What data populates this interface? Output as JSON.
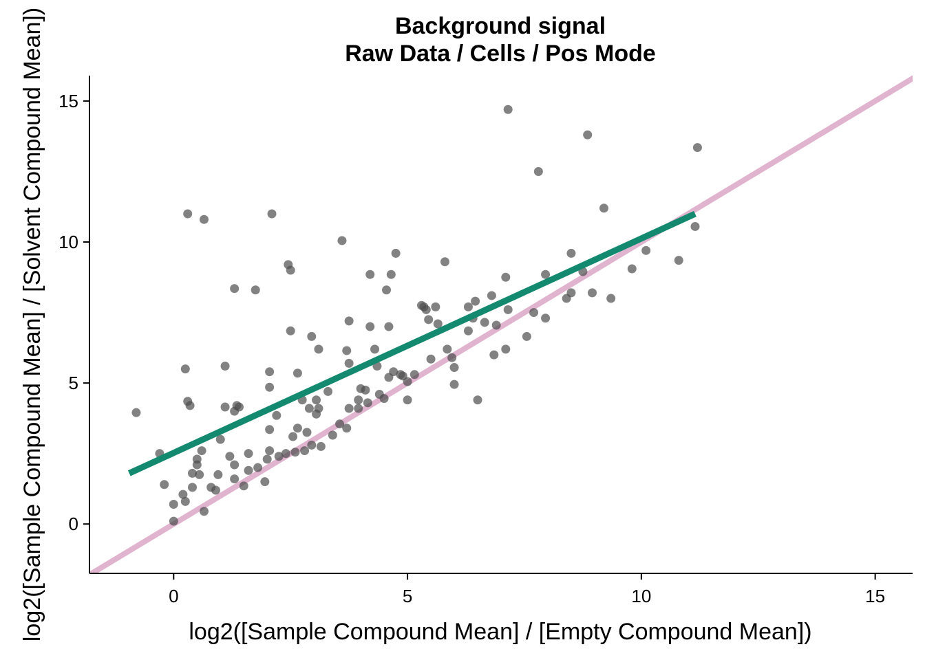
{
  "chart_data": {
    "type": "scatter",
    "title": "Background signal",
    "subtitle": "Raw Data / Cells / Pos Mode",
    "xlabel": "log2([Sample Compound Mean] / [Empty Compound Mean])",
    "ylabel": "log2([Sample Compound Mean] / [Solvent Compound Mean])",
    "xlim": [
      -1.8,
      15.8
    ],
    "ylim": [
      -1.75,
      15.9
    ],
    "x_ticks": [
      0,
      5,
      10,
      15
    ],
    "y_ticks": [
      0,
      5,
      10,
      15
    ],
    "grid": false,
    "point_color": "#4d4d4d",
    "identity_line": {
      "slope": 1,
      "intercept": 0,
      "color": "#e0b3cf"
    },
    "trend_line": {
      "x": [
        -0.95,
        11.15
      ],
      "y": [
        1.8,
        11.0
      ],
      "color": "#138a70"
    },
    "points": [
      [
        -0.8,
        3.95
      ],
      [
        -0.3,
        2.5
      ],
      [
        -0.2,
        1.4
      ],
      [
        0.0,
        0.1
      ],
      [
        0.0,
        0.7
      ],
      [
        0.2,
        1.05
      ],
      [
        0.25,
        0.8
      ],
      [
        0.25,
        5.5
      ],
      [
        0.3,
        4.35
      ],
      [
        0.35,
        4.2
      ],
      [
        0.3,
        11.0
      ],
      [
        0.4,
        1.8
      ],
      [
        0.4,
        1.3
      ],
      [
        0.5,
        2.3
      ],
      [
        0.5,
        2.1
      ],
      [
        0.55,
        1.75
      ],
      [
        0.6,
        2.6
      ],
      [
        0.65,
        0.45
      ],
      [
        0.65,
        10.8
      ],
      [
        0.8,
        1.3
      ],
      [
        0.9,
        1.2
      ],
      [
        0.95,
        1.75
      ],
      [
        1.0,
        3.0
      ],
      [
        1.1,
        4.15
      ],
      [
        1.1,
        5.6
      ],
      [
        1.2,
        2.4
      ],
      [
        1.3,
        4.0
      ],
      [
        1.3,
        2.1
      ],
      [
        1.3,
        1.6
      ],
      [
        1.35,
        4.2
      ],
      [
        1.3,
        8.35
      ],
      [
        1.4,
        4.15
      ],
      [
        1.5,
        1.35
      ],
      [
        1.6,
        2.5
      ],
      [
        1.6,
        1.9
      ],
      [
        1.8,
        2.0
      ],
      [
        1.75,
        8.3
      ],
      [
        1.95,
        1.5
      ],
      [
        2.0,
        2.3
      ],
      [
        2.05,
        2.6
      ],
      [
        2.05,
        3.35
      ],
      [
        2.05,
        4.85
      ],
      [
        2.05,
        5.4
      ],
      [
        2.1,
        11.0
      ],
      [
        2.2,
        3.85
      ],
      [
        2.25,
        2.4
      ],
      [
        2.4,
        2.5
      ],
      [
        2.45,
        9.2
      ],
      [
        2.5,
        9.0
      ],
      [
        2.5,
        6.85
      ],
      [
        2.55,
        3.1
      ],
      [
        2.6,
        2.55
      ],
      [
        2.65,
        5.35
      ],
      [
        2.65,
        3.4
      ],
      [
        2.75,
        4.4
      ],
      [
        2.8,
        2.6
      ],
      [
        2.85,
        3.25
      ],
      [
        2.9,
        4.1
      ],
      [
        2.95,
        2.8
      ],
      [
        2.95,
        6.65
      ],
      [
        3.05,
        4.4
      ],
      [
        3.05,
        3.9
      ],
      [
        3.1,
        4.1
      ],
      [
        3.1,
        6.2
      ],
      [
        3.15,
        2.75
      ],
      [
        3.3,
        4.7
      ],
      [
        3.4,
        3.15
      ],
      [
        3.55,
        3.55
      ],
      [
        3.6,
        10.05
      ],
      [
        3.7,
        6.15
      ],
      [
        3.75,
        7.2
      ],
      [
        3.75,
        5.7
      ],
      [
        3.75,
        4.1
      ],
      [
        3.7,
        3.4
      ],
      [
        3.95,
        4.4
      ],
      [
        3.95,
        4.1
      ],
      [
        4.0,
        4.8
      ],
      [
        4.1,
        4.75
      ],
      [
        4.15,
        4.3
      ],
      [
        4.2,
        7.0
      ],
      [
        4.2,
        8.85
      ],
      [
        4.3,
        6.2
      ],
      [
        4.35,
        5.6
      ],
      [
        4.4,
        4.6
      ],
      [
        4.5,
        4.45
      ],
      [
        4.55,
        8.3
      ],
      [
        4.6,
        7.0
      ],
      [
        4.6,
        5.2
      ],
      [
        4.65,
        8.85
      ],
      [
        4.7,
        5.4
      ],
      [
        4.75,
        9.6
      ],
      [
        4.85,
        5.3
      ],
      [
        4.9,
        5.25
      ],
      [
        5.0,
        4.4
      ],
      [
        5.0,
        5.05
      ],
      [
        5.15,
        5.3
      ],
      [
        5.3,
        7.75
      ],
      [
        5.35,
        7.7
      ],
      [
        5.4,
        7.6
      ],
      [
        5.45,
        7.25
      ],
      [
        5.5,
        5.85
      ],
      [
        5.6,
        7.7
      ],
      [
        5.65,
        7.1
      ],
      [
        5.8,
        9.3
      ],
      [
        5.85,
        6.2
      ],
      [
        5.95,
        5.9
      ],
      [
        6.0,
        5.55
      ],
      [
        6.0,
        4.95
      ],
      [
        6.3,
        7.7
      ],
      [
        6.3,
        6.85
      ],
      [
        6.4,
        7.3
      ],
      [
        6.45,
        7.9
      ],
      [
        6.5,
        4.4
      ],
      [
        6.65,
        7.15
      ],
      [
        6.8,
        8.1
      ],
      [
        6.85,
        6.0
      ],
      [
        6.9,
        7.05
      ],
      [
        7.1,
        8.75
      ],
      [
        7.1,
        6.2
      ],
      [
        7.15,
        7.6
      ],
      [
        7.15,
        14.7
      ],
      [
        7.55,
        6.65
      ],
      [
        7.7,
        7.5
      ],
      [
        7.8,
        12.5
      ],
      [
        7.95,
        7.3
      ],
      [
        7.95,
        8.85
      ],
      [
        8.4,
        8.0
      ],
      [
        8.5,
        9.6
      ],
      [
        8.5,
        8.2
      ],
      [
        8.75,
        8.95
      ],
      [
        8.85,
        13.8
      ],
      [
        8.95,
        8.2
      ],
      [
        9.2,
        11.2
      ],
      [
        9.35,
        8.0
      ],
      [
        9.8,
        9.05
      ],
      [
        10.1,
        9.7
      ],
      [
        10.8,
        9.35
      ],
      [
        11.15,
        10.55
      ],
      [
        11.2,
        13.35
      ]
    ]
  }
}
